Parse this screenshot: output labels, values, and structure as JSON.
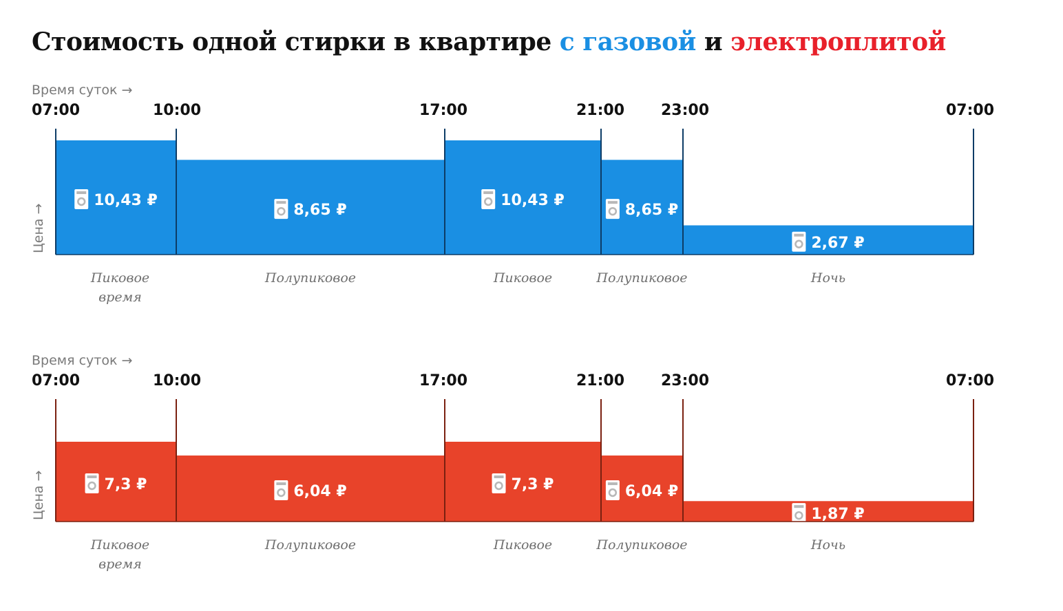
{
  "title": {
    "prefix": "Стоимость одной стирки в квартире",
    "gas": "с газовой",
    "middle": "и",
    "electric": "электроплитой"
  },
  "colors": {
    "gas": "#1a8fe3",
    "gas_divider": "#0d3c66",
    "electric": "#e8432a",
    "electric_divider": "#7a2010"
  },
  "icon": "washing-machine-icon",
  "chart_data": [
    {
      "type": "bar",
      "name": "с газовой",
      "x_axis_label": "Время суток →",
      "y_axis_label": "Цена →",
      "ticks": [
        "07:00",
        "10:00",
        "17:00",
        "21:00",
        "23:00",
        "07:00"
      ],
      "tick_hours": [
        7,
        10,
        17,
        21,
        23,
        31
      ],
      "segments": [
        {
          "from": 7,
          "to": 10,
          "value": 10.43,
          "label": "10,43 ₽",
          "tariff": [
            "Пиковое",
            "время"
          ]
        },
        {
          "from": 10,
          "to": 17,
          "value": 8.65,
          "label": "8,65 ₽",
          "tariff": [
            "Полупиковое"
          ]
        },
        {
          "from": 17,
          "to": 21,
          "value": 10.43,
          "label": "10,43 ₽",
          "tariff": [
            "Пиковое"
          ]
        },
        {
          "from": 21,
          "to": 23,
          "value": 8.65,
          "label": "8,65 ₽",
          "tariff": [
            "Полупиковое"
          ]
        },
        {
          "from": 23,
          "to": 31,
          "value": 2.67,
          "label": "2,67 ₽",
          "tariff": [
            "Ночь"
          ]
        }
      ]
    },
    {
      "type": "bar",
      "name": "электроплитой",
      "x_axis_label": "Время суток →",
      "y_axis_label": "Цена →",
      "ticks": [
        "07:00",
        "10:00",
        "17:00",
        "21:00",
        "23:00",
        "07:00"
      ],
      "tick_hours": [
        7,
        10,
        17,
        21,
        23,
        31
      ],
      "segments": [
        {
          "from": 7,
          "to": 10,
          "value": 7.3,
          "label": "7,3 ₽",
          "tariff": [
            "Пиковое",
            "время"
          ]
        },
        {
          "from": 10,
          "to": 17,
          "value": 6.04,
          "label": "6,04 ₽",
          "tariff": [
            "Полупиковое"
          ]
        },
        {
          "from": 17,
          "to": 21,
          "value": 7.3,
          "label": "7,3 ₽",
          "tariff": [
            "Пиковое"
          ]
        },
        {
          "from": 21,
          "to": 23,
          "value": 6.04,
          "label": "6,04 ₽",
          "tariff": [
            "Полупиковое"
          ]
        },
        {
          "from": 23,
          "to": 31,
          "value": 1.87,
          "label": "1,87 ₽",
          "tariff": [
            "Ночь"
          ]
        }
      ]
    }
  ]
}
